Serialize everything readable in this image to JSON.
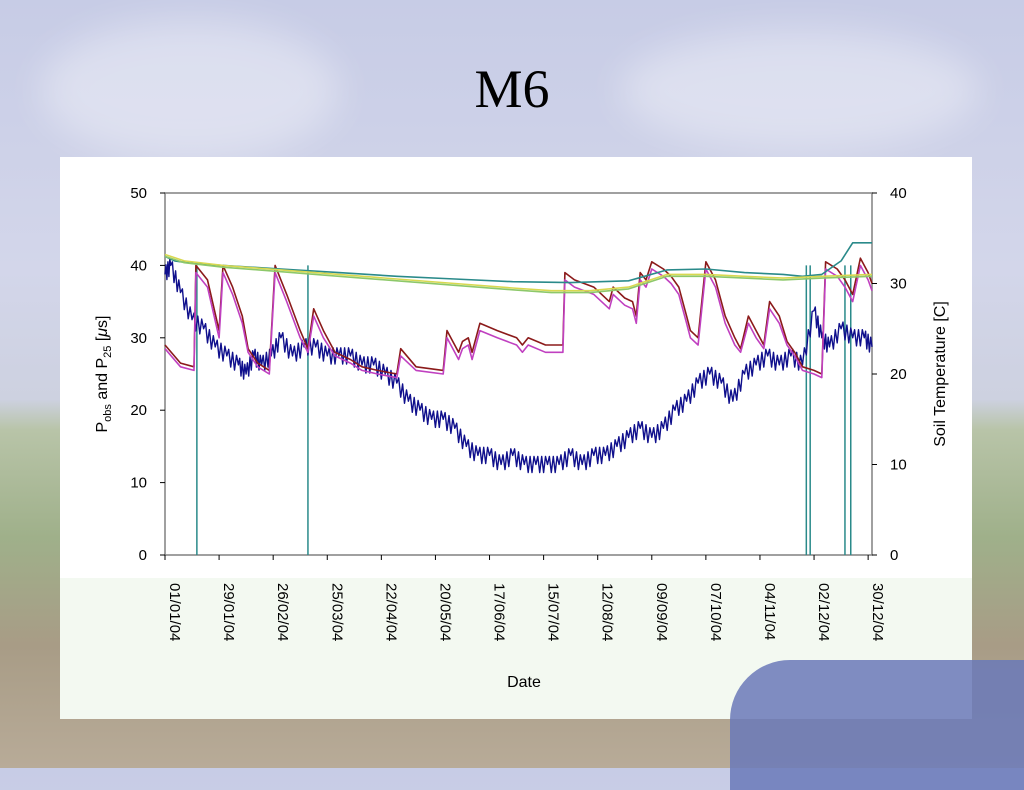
{
  "slide": {
    "title": "M6"
  },
  "chart_data": {
    "type": "line",
    "xlabel": "Date",
    "ylabel_left": {
      "main": "P",
      "sub1": "obs",
      "mid": " and P",
      "sub2": "25",
      "tail": " [",
      "mu": "μ",
      "unit_end": "s]"
    },
    "ylabel_right": "Soil Temperature [C]",
    "ylim_left": [
      0,
      50
    ],
    "ylim_right": [
      0,
      40
    ],
    "left_ticks": [
      "0",
      "10",
      "20",
      "30",
      "40",
      "50"
    ],
    "right_ticks": [
      "0",
      "10",
      "20",
      "30",
      "40"
    ],
    "x_ticks": [
      "01/01/04",
      "29/01/04",
      "26/02/04",
      "25/03/04",
      "22/04/04",
      "20/05/04",
      "17/06/04",
      "15/07/04",
      "12/08/04",
      "09/09/04",
      "07/10/04",
      "04/11/04",
      "02/12/04",
      "30/12/04"
    ],
    "x_tick_days": [
      0,
      28,
      56,
      84,
      112,
      140,
      168,
      196,
      224,
      252,
      280,
      308,
      336,
      364
    ],
    "xlim_days": [
      0,
      366
    ],
    "grid": false,
    "series": [
      {
        "axis": "right",
        "color": "#0f0f8c",
        "points": [
          [
            0,
            31
          ],
          [
            3,
            32
          ],
          [
            8,
            29
          ],
          [
            14,
            26
          ],
          [
            20,
            25
          ],
          [
            26,
            23
          ],
          [
            32,
            22
          ],
          [
            38,
            21
          ],
          [
            42,
            20
          ],
          [
            46,
            22
          ],
          [
            50,
            21
          ],
          [
            55,
            22
          ],
          [
            60,
            24
          ],
          [
            66,
            22
          ],
          [
            72,
            23
          ],
          [
            78,
            23
          ],
          [
            84,
            22
          ],
          [
            90,
            22
          ],
          [
            96,
            22
          ],
          [
            102,
            21
          ],
          [
            108,
            21
          ],
          [
            114,
            20
          ],
          [
            120,
            19
          ],
          [
            126,
            17
          ],
          [
            132,
            16
          ],
          [
            138,
            15
          ],
          [
            144,
            15
          ],
          [
            150,
            14
          ],
          [
            156,
            12
          ],
          [
            162,
            11
          ],
          [
            168,
            11
          ],
          [
            174,
            10
          ],
          [
            180,
            11
          ],
          [
            186,
            10
          ],
          [
            192,
            10
          ],
          [
            198,
            10
          ],
          [
            204,
            10
          ],
          [
            210,
            11
          ],
          [
            216,
            10
          ],
          [
            222,
            11
          ],
          [
            228,
            11
          ],
          [
            234,
            12
          ],
          [
            240,
            13
          ],
          [
            246,
            14
          ],
          [
            252,
            13
          ],
          [
            258,
            14
          ],
          [
            264,
            16
          ],
          [
            270,
            17
          ],
          [
            276,
            19
          ],
          [
            282,
            20
          ],
          [
            288,
            19
          ],
          [
            294,
            17
          ],
          [
            300,
            20
          ],
          [
            306,
            21
          ],
          [
            312,
            22
          ],
          [
            318,
            21
          ],
          [
            324,
            22
          ],
          [
            330,
            21
          ],
          [
            336,
            27
          ],
          [
            340,
            24
          ],
          [
            344,
            23
          ],
          [
            350,
            25
          ],
          [
            356,
            24
          ],
          [
            362,
            24
          ],
          [
            366,
            23
          ]
        ]
      },
      {
        "axis": "left",
        "color": "#8b1a1a",
        "points": [
          [
            0,
            29
          ],
          [
            8,
            26.5
          ],
          [
            15,
            26
          ],
          [
            16,
            40
          ],
          [
            22,
            38
          ],
          [
            28,
            31
          ],
          [
            30,
            40
          ],
          [
            35,
            37
          ],
          [
            40,
            33
          ],
          [
            43,
            28.5
          ],
          [
            48,
            26.5
          ],
          [
            54,
            25.5
          ],
          [
            57,
            40
          ],
          [
            63,
            36
          ],
          [
            70,
            31
          ],
          [
            74,
            28.5
          ],
          [
            77,
            34
          ],
          [
            82,
            31
          ],
          [
            88,
            28
          ],
          [
            96,
            27
          ],
          [
            102,
            26
          ],
          [
            110,
            25.5
          ],
          [
            120,
            25
          ],
          [
            122,
            28.5
          ],
          [
            130,
            26
          ],
          [
            144,
            25.5
          ],
          [
            146,
            31
          ],
          [
            152,
            28
          ],
          [
            154,
            29.5
          ],
          [
            157,
            30
          ],
          [
            159,
            28
          ],
          [
            163,
            32
          ],
          [
            172,
            31
          ],
          [
            182,
            30
          ],
          [
            185,
            29
          ],
          [
            188,
            30
          ],
          [
            197,
            29
          ],
          [
            206,
            29
          ],
          [
            207,
            39
          ],
          [
            212,
            38
          ],
          [
            222,
            37
          ],
          [
            230,
            35
          ],
          [
            232,
            37
          ],
          [
            238,
            35.5
          ],
          [
            242,
            35
          ],
          [
            244,
            33
          ],
          [
            246,
            39
          ],
          [
            249,
            38
          ],
          [
            252,
            40.5
          ],
          [
            258,
            39.5
          ],
          [
            262,
            38.5
          ],
          [
            266,
            37
          ],
          [
            270,
            33
          ],
          [
            272,
            31
          ],
          [
            276,
            30
          ],
          [
            280,
            40.5
          ],
          [
            285,
            38
          ],
          [
            290,
            33
          ],
          [
            295,
            30
          ],
          [
            298,
            28.5
          ],
          [
            302,
            33
          ],
          [
            306,
            31
          ],
          [
            310,
            29
          ],
          [
            313,
            35
          ],
          [
            318,
            33
          ],
          [
            322,
            29.5
          ],
          [
            326,
            28
          ],
          [
            330,
            26
          ],
          [
            336,
            25.5
          ],
          [
            340,
            25
          ],
          [
            342,
            40.5
          ],
          [
            348,
            39.5
          ],
          [
            352,
            38
          ],
          [
            356,
            36
          ],
          [
            360,
            41
          ],
          [
            364,
            39
          ],
          [
            366,
            37.5
          ]
        ]
      },
      {
        "axis": "left",
        "color": "#c040c0",
        "points": [
          [
            0,
            28.5
          ],
          [
            8,
            26
          ],
          [
            15,
            25.5
          ],
          [
            16,
            39
          ],
          [
            22,
            37
          ],
          [
            28,
            30
          ],
          [
            30,
            39
          ],
          [
            35,
            36
          ],
          [
            40,
            32
          ],
          [
            43,
            28
          ],
          [
            48,
            26
          ],
          [
            54,
            25
          ],
          [
            57,
            39
          ],
          [
            63,
            35
          ],
          [
            70,
            30
          ],
          [
            74,
            28
          ],
          [
            77,
            33
          ],
          [
            82,
            30
          ],
          [
            88,
            27.5
          ],
          [
            96,
            26.5
          ],
          [
            102,
            25.5
          ],
          [
            110,
            25
          ],
          [
            120,
            24.5
          ],
          [
            122,
            27.5
          ],
          [
            130,
            25.5
          ],
          [
            144,
            25
          ],
          [
            146,
            30
          ],
          [
            152,
            27
          ],
          [
            154,
            28.5
          ],
          [
            157,
            29
          ],
          [
            159,
            27
          ],
          [
            163,
            31
          ],
          [
            172,
            30
          ],
          [
            182,
            29
          ],
          [
            185,
            28
          ],
          [
            188,
            29
          ],
          [
            197,
            28
          ],
          [
            206,
            28
          ],
          [
            207,
            38
          ],
          [
            212,
            37
          ],
          [
            222,
            36
          ],
          [
            230,
            34
          ],
          [
            232,
            36
          ],
          [
            238,
            34.5
          ],
          [
            242,
            34
          ],
          [
            244,
            32
          ],
          [
            246,
            38
          ],
          [
            249,
            37
          ],
          [
            252,
            39.5
          ],
          [
            258,
            38.5
          ],
          [
            262,
            37.5
          ],
          [
            266,
            36
          ],
          [
            270,
            32
          ],
          [
            272,
            30
          ],
          [
            276,
            29
          ],
          [
            280,
            39.5
          ],
          [
            285,
            37
          ],
          [
            290,
            32
          ],
          [
            295,
            29
          ],
          [
            298,
            28
          ],
          [
            302,
            32
          ],
          [
            306,
            30
          ],
          [
            310,
            28.5
          ],
          [
            313,
            34
          ],
          [
            318,
            32
          ],
          [
            322,
            29
          ],
          [
            326,
            27.5
          ],
          [
            330,
            25.5
          ],
          [
            336,
            25
          ],
          [
            340,
            24.5
          ],
          [
            342,
            39.5
          ],
          [
            348,
            38.5
          ],
          [
            352,
            37
          ],
          [
            356,
            35
          ],
          [
            360,
            40
          ],
          [
            364,
            38
          ],
          [
            366,
            36.5
          ]
        ]
      },
      {
        "axis": "right",
        "color": "#2a8a8a",
        "points": [
          [
            0,
            33
          ],
          [
            5,
            32.5
          ],
          [
            15,
            32.2
          ],
          [
            30,
            32
          ],
          [
            60,
            31.6
          ],
          [
            90,
            31.2
          ],
          [
            120,
            30.8
          ],
          [
            150,
            30.5
          ],
          [
            180,
            30.2
          ],
          [
            210,
            30.1
          ],
          [
            240,
            30.3
          ],
          [
            260,
            31.5
          ],
          [
            280,
            31.6
          ],
          [
            300,
            31.2
          ],
          [
            320,
            31
          ],
          [
            330,
            30.8
          ],
          [
            340,
            31
          ],
          [
            350,
            32.5
          ],
          [
            356,
            34.5
          ],
          [
            366,
            34.5
          ]
        ]
      },
      {
        "axis": "right",
        "color": "#d8d850",
        "points": [
          [
            0,
            33.2
          ],
          [
            10,
            32.5
          ],
          [
            30,
            32
          ],
          [
            60,
            31.5
          ],
          [
            90,
            31
          ],
          [
            120,
            30.5
          ],
          [
            150,
            30
          ],
          [
            180,
            29.5
          ],
          [
            200,
            29.2
          ],
          [
            220,
            29.2
          ],
          [
            240,
            29.6
          ],
          [
            260,
            31
          ],
          [
            280,
            31
          ],
          [
            300,
            30.8
          ],
          [
            320,
            30.6
          ],
          [
            340,
            30.8
          ],
          [
            366,
            31
          ]
        ]
      },
      {
        "axis": "right",
        "color": "#8dc86a",
        "points": [
          [
            0,
            33
          ],
          [
            10,
            32.3
          ],
          [
            30,
            31.8
          ],
          [
            60,
            31.3
          ],
          [
            90,
            30.8
          ],
          [
            120,
            30.3
          ],
          [
            150,
            29.8
          ],
          [
            180,
            29.3
          ],
          [
            200,
            29
          ],
          [
            220,
            29
          ],
          [
            240,
            29.4
          ],
          [
            260,
            30.8
          ],
          [
            280,
            30.8
          ],
          [
            300,
            30.6
          ],
          [
            320,
            30.4
          ],
          [
            340,
            30.6
          ],
          [
            366,
            30.8
          ]
        ]
      }
    ],
    "dropouts": [
      {
        "day": 16.5,
        "color": "#2a8a8a"
      },
      {
        "day": 74,
        "color": "#2a8a8a"
      },
      {
        "day": 332,
        "color": "#2a8a8a"
      },
      {
        "day": 334,
        "color": "#2a8a8a"
      },
      {
        "day": 352,
        "color": "#2a8a8a"
      },
      {
        "day": 355,
        "color": "#2a8a8a"
      }
    ]
  }
}
